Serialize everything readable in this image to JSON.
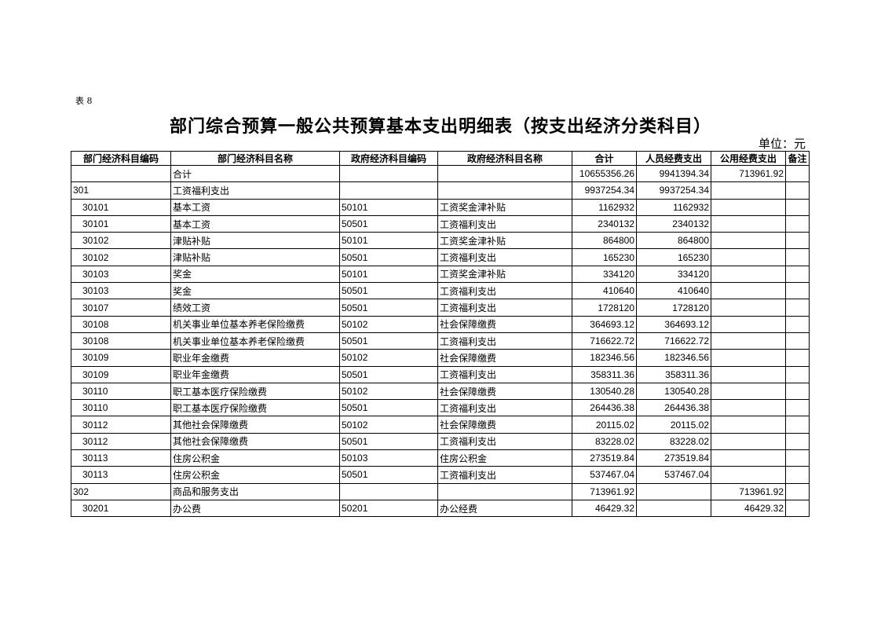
{
  "table_label": "表 8",
  "title": "部门综合预算一般公共预算基本支出明细表（按支出经济分类科目）",
  "unit": "单位：元",
  "columns": [
    "部门经济科目编码",
    "部门经济科目名称",
    "政府经济科目编码",
    "政府经济科目名称",
    "合计",
    "人员经费支出",
    "公用经费支出",
    "备注"
  ],
  "rows": [
    [
      "",
      "合计",
      "",
      "",
      "10655356.26",
      "9941394.34",
      "713961.92",
      ""
    ],
    [
      "301",
      "工资福利支出",
      "",
      "",
      "9937254.34",
      "9937254.34",
      "",
      ""
    ],
    [
      "30101",
      "基本工资",
      "50101",
      "工资奖金津补贴",
      "1162932",
      "1162932",
      "",
      ""
    ],
    [
      "30101",
      "基本工资",
      "50501",
      "工资福利支出",
      "2340132",
      "2340132",
      "",
      ""
    ],
    [
      "30102",
      "津贴补贴",
      "50101",
      "工资奖金津补贴",
      "864800",
      "864800",
      "",
      ""
    ],
    [
      "30102",
      "津贴补贴",
      "50501",
      "工资福利支出",
      "165230",
      "165230",
      "",
      ""
    ],
    [
      "30103",
      "奖金",
      "50101",
      "工资奖金津补贴",
      "334120",
      "334120",
      "",
      ""
    ],
    [
      "30103",
      "奖金",
      "50501",
      "工资福利支出",
      "410640",
      "410640",
      "",
      ""
    ],
    [
      "30107",
      "绩效工资",
      "50501",
      "工资福利支出",
      "1728120",
      "1728120",
      "",
      ""
    ],
    [
      "30108",
      "机关事业单位基本养老保险缴费",
      "50102",
      "社会保障缴费",
      "364693.12",
      "364693.12",
      "",
      ""
    ],
    [
      "30108",
      "机关事业单位基本养老保险缴费",
      "50501",
      "工资福利支出",
      "716622.72",
      "716622.72",
      "",
      ""
    ],
    [
      "30109",
      "职业年金缴费",
      "50102",
      "社会保障缴费",
      "182346.56",
      "182346.56",
      "",
      ""
    ],
    [
      "30109",
      "职业年金缴费",
      "50501",
      "工资福利支出",
      "358311.36",
      "358311.36",
      "",
      ""
    ],
    [
      "30110",
      "职工基本医疗保险缴费",
      "50102",
      "社会保障缴费",
      "130540.28",
      "130540.28",
      "",
      ""
    ],
    [
      "30110",
      "职工基本医疗保险缴费",
      "50501",
      "工资福利支出",
      "264436.38",
      "264436.38",
      "",
      ""
    ],
    [
      "30112",
      "其他社会保障缴费",
      "50102",
      "社会保障缴费",
      "20115.02",
      "20115.02",
      "",
      ""
    ],
    [
      "30112",
      "其他社会保障缴费",
      "50501",
      "工资福利支出",
      "83228.02",
      "83228.02",
      "",
      ""
    ],
    [
      "30113",
      "住房公积金",
      "50103",
      "住房公积金",
      "273519.84",
      "273519.84",
      "",
      ""
    ],
    [
      "30113",
      "住房公积金",
      "50501",
      "工资福利支出",
      "537467.04",
      "537467.04",
      "",
      ""
    ],
    [
      "302",
      "商品和服务支出",
      "",
      "",
      "713961.92",
      "",
      "713961.92",
      ""
    ],
    [
      "30201",
      "办公费",
      "50201",
      "办公经费",
      "46429.32",
      "",
      "46429.32",
      ""
    ]
  ]
}
